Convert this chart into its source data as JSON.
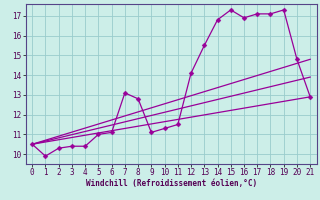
{
  "xlabel": "Windchill (Refroidissement éolien,°C)",
  "bg_color": "#cceee8",
  "line_color": "#990099",
  "grid_color": "#99cccc",
  "xlim": [
    -0.5,
    21.5
  ],
  "ylim": [
    9.5,
    17.6
  ],
  "xticks": [
    0,
    1,
    2,
    3,
    4,
    5,
    6,
    7,
    8,
    9,
    10,
    11,
    12,
    13,
    14,
    15,
    16,
    17,
    18,
    19,
    20,
    21
  ],
  "yticks": [
    10,
    11,
    12,
    13,
    14,
    15,
    16,
    17
  ],
  "line1_x": [
    0,
    1,
    2,
    3,
    4,
    5,
    6,
    7,
    8,
    9,
    10,
    11,
    12,
    13,
    14,
    15,
    16,
    17,
    18,
    19,
    20,
    21
  ],
  "line1_y": [
    10.5,
    9.9,
    10.3,
    10.4,
    10.4,
    11.0,
    11.1,
    13.1,
    12.8,
    11.1,
    11.3,
    11.5,
    14.1,
    15.5,
    16.8,
    17.3,
    16.9,
    17.1,
    17.1,
    17.3,
    14.8,
    12.9
  ],
  "line2_x": [
    0,
    21
  ],
  "line2_y": [
    10.5,
    14.8
  ],
  "line3_x": [
    0,
    21
  ],
  "line3_y": [
    10.5,
    13.9
  ],
  "line4_x": [
    0,
    21
  ],
  "line4_y": [
    10.5,
    12.9
  ],
  "markersize": 2.5,
  "linewidth": 0.9
}
